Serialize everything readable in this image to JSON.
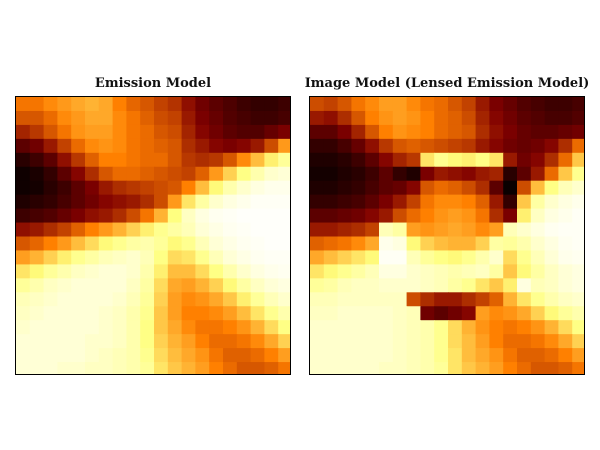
{
  "chart_data": [
    {
      "type": "heatmap",
      "title": "Emission Model",
      "colormap": "afmhot",
      "grid": false,
      "rows": 20,
      "cols": 20,
      "values": [
        [
          0.48,
          0.48,
          0.52,
          0.55,
          0.58,
          0.6,
          0.58,
          0.5,
          0.45,
          0.42,
          0.38,
          0.35,
          0.28,
          0.22,
          0.18,
          0.15,
          0.12,
          0.1,
          0.1,
          0.12
        ],
        [
          0.42,
          0.42,
          0.46,
          0.52,
          0.55,
          0.58,
          0.58,
          0.52,
          0.48,
          0.44,
          0.4,
          0.38,
          0.3,
          0.24,
          0.2,
          0.16,
          0.14,
          0.12,
          0.12,
          0.14
        ],
        [
          0.32,
          0.36,
          0.42,
          0.48,
          0.54,
          0.56,
          0.56,
          0.52,
          0.48,
          0.46,
          0.42,
          0.4,
          0.32,
          0.26,
          0.22,
          0.18,
          0.16,
          0.16,
          0.2,
          0.24
        ],
        [
          0.18,
          0.22,
          0.3,
          0.38,
          0.46,
          0.52,
          0.54,
          0.52,
          0.48,
          0.46,
          0.44,
          0.42,
          0.34,
          0.3,
          0.26,
          0.24,
          0.26,
          0.3,
          0.4,
          0.55
        ],
        [
          0.08,
          0.12,
          0.18,
          0.28,
          0.36,
          0.44,
          0.5,
          0.5,
          0.48,
          0.46,
          0.46,
          0.42,
          0.36,
          0.34,
          0.36,
          0.42,
          0.52,
          0.62,
          0.72,
          0.8
        ],
        [
          0.03,
          0.05,
          0.1,
          0.18,
          0.26,
          0.34,
          0.42,
          0.46,
          0.46,
          0.44,
          0.42,
          0.4,
          0.38,
          0.44,
          0.55,
          0.66,
          0.76,
          0.84,
          0.9,
          0.92
        ],
        [
          0.03,
          0.04,
          0.08,
          0.12,
          0.18,
          0.24,
          0.3,
          0.34,
          0.36,
          0.38,
          0.4,
          0.42,
          0.5,
          0.62,
          0.74,
          0.84,
          0.9,
          0.94,
          0.96,
          0.96
        ],
        [
          0.06,
          0.08,
          0.1,
          0.14,
          0.18,
          0.22,
          0.26,
          0.28,
          0.3,
          0.34,
          0.4,
          0.55,
          0.7,
          0.82,
          0.9,
          0.94,
          0.96,
          0.98,
          0.98,
          0.98
        ],
        [
          0.12,
          0.14,
          0.16,
          0.2,
          0.24,
          0.28,
          0.3,
          0.34,
          0.4,
          0.48,
          0.6,
          0.75,
          0.88,
          0.94,
          0.97,
          0.98,
          0.99,
          0.99,
          0.99,
          0.99
        ],
        [
          0.28,
          0.3,
          0.34,
          0.38,
          0.44,
          0.5,
          0.55,
          0.6,
          0.66,
          0.72,
          0.78,
          0.82,
          0.86,
          0.92,
          0.95,
          0.97,
          0.98,
          0.99,
          0.99,
          0.99
        ],
        [
          0.42,
          0.45,
          0.5,
          0.55,
          0.62,
          0.68,
          0.74,
          0.78,
          0.82,
          0.84,
          0.8,
          0.74,
          0.78,
          0.86,
          0.92,
          0.95,
          0.97,
          0.98,
          0.99,
          0.99
        ],
        [
          0.56,
          0.6,
          0.66,
          0.72,
          0.78,
          0.82,
          0.86,
          0.88,
          0.9,
          0.86,
          0.76,
          0.68,
          0.7,
          0.78,
          0.86,
          0.92,
          0.95,
          0.97,
          0.98,
          0.98
        ],
        [
          0.7,
          0.74,
          0.8,
          0.84,
          0.88,
          0.9,
          0.92,
          0.92,
          0.9,
          0.84,
          0.72,
          0.62,
          0.62,
          0.68,
          0.76,
          0.84,
          0.9,
          0.94,
          0.96,
          0.97
        ],
        [
          0.8,
          0.84,
          0.88,
          0.9,
          0.92,
          0.92,
          0.92,
          0.92,
          0.88,
          0.82,
          0.68,
          0.58,
          0.56,
          0.6,
          0.66,
          0.74,
          0.82,
          0.88,
          0.92,
          0.94
        ],
        [
          0.86,
          0.88,
          0.9,
          0.92,
          0.92,
          0.92,
          0.92,
          0.9,
          0.86,
          0.8,
          0.66,
          0.56,
          0.52,
          0.54,
          0.58,
          0.64,
          0.72,
          0.8,
          0.86,
          0.9
        ],
        [
          0.88,
          0.9,
          0.92,
          0.92,
          0.92,
          0.92,
          0.9,
          0.88,
          0.84,
          0.78,
          0.64,
          0.56,
          0.5,
          0.5,
          0.52,
          0.56,
          0.62,
          0.7,
          0.78,
          0.84
        ],
        [
          0.9,
          0.92,
          0.92,
          0.92,
          0.92,
          0.92,
          0.9,
          0.88,
          0.84,
          0.76,
          0.64,
          0.58,
          0.52,
          0.48,
          0.48,
          0.5,
          0.54,
          0.6,
          0.68,
          0.76
        ],
        [
          0.92,
          0.92,
          0.92,
          0.92,
          0.92,
          0.9,
          0.9,
          0.88,
          0.84,
          0.76,
          0.66,
          0.6,
          0.56,
          0.5,
          0.46,
          0.46,
          0.48,
          0.52,
          0.58,
          0.66
        ],
        [
          0.92,
          0.92,
          0.92,
          0.92,
          0.92,
          0.9,
          0.88,
          0.86,
          0.84,
          0.78,
          0.68,
          0.62,
          0.58,
          0.54,
          0.48,
          0.44,
          0.44,
          0.46,
          0.5,
          0.56
        ],
        [
          0.92,
          0.92,
          0.92,
          0.9,
          0.9,
          0.88,
          0.88,
          0.86,
          0.84,
          0.8,
          0.7,
          0.64,
          0.6,
          0.56,
          0.5,
          0.46,
          0.42,
          0.42,
          0.44,
          0.48
        ]
      ]
    },
    {
      "type": "heatmap",
      "title": "Image Model (Lensed Emission Model)",
      "colormap": "afmhot",
      "grid": false,
      "rows": 20,
      "cols": 20,
      "values": [
        [
          0.4,
          0.38,
          0.42,
          0.48,
          0.52,
          0.56,
          0.56,
          0.52,
          0.48,
          0.46,
          0.42,
          0.38,
          0.3,
          0.24,
          0.2,
          0.16,
          0.14,
          0.12,
          0.12,
          0.14
        ],
        [
          0.3,
          0.28,
          0.34,
          0.42,
          0.5,
          0.54,
          0.56,
          0.54,
          0.5,
          0.46,
          0.44,
          0.4,
          0.32,
          0.26,
          0.22,
          0.18,
          0.16,
          0.14,
          0.14,
          0.16
        ],
        [
          0.18,
          0.18,
          0.24,
          0.32,
          0.42,
          0.5,
          0.54,
          0.52,
          0.5,
          0.46,
          0.44,
          0.42,
          0.34,
          0.28,
          0.24,
          0.2,
          0.18,
          0.18,
          0.2,
          0.22
        ],
        [
          0.1,
          0.1,
          0.14,
          0.2,
          0.28,
          0.36,
          0.42,
          0.44,
          0.42,
          0.4,
          0.38,
          0.36,
          0.3,
          0.26,
          0.22,
          0.2,
          0.22,
          0.26,
          0.34,
          0.46
        ],
        [
          0.06,
          0.06,
          0.08,
          0.12,
          0.18,
          0.26,
          0.32,
          0.36,
          0.7,
          0.78,
          0.74,
          0.72,
          0.76,
          0.7,
          0.3,
          0.22,
          0.26,
          0.34,
          0.46,
          0.64
        ],
        [
          0.04,
          0.04,
          0.06,
          0.08,
          0.12,
          0.18,
          0.1,
          0.06,
          0.24,
          0.3,
          0.28,
          0.26,
          0.3,
          0.32,
          0.08,
          0.18,
          0.3,
          0.46,
          0.64,
          0.78
        ],
        [
          0.06,
          0.06,
          0.08,
          0.1,
          0.14,
          0.18,
          0.2,
          0.26,
          0.42,
          0.46,
          0.44,
          0.4,
          0.34,
          0.18,
          0.02,
          0.4,
          0.62,
          0.76,
          0.86,
          0.9
        ],
        [
          0.1,
          0.1,
          0.12,
          0.14,
          0.18,
          0.24,
          0.3,
          0.38,
          0.48,
          0.52,
          0.52,
          0.5,
          0.44,
          0.3,
          0.1,
          0.64,
          0.82,
          0.9,
          0.94,
          0.96
        ],
        [
          0.18,
          0.18,
          0.2,
          0.22,
          0.26,
          0.3,
          0.4,
          0.46,
          0.5,
          0.54,
          0.56,
          0.54,
          0.48,
          0.34,
          0.24,
          0.72,
          0.88,
          0.94,
          0.96,
          0.98
        ],
        [
          0.3,
          0.3,
          0.32,
          0.34,
          0.38,
          0.86,
          0.82,
          0.56,
          0.54,
          0.56,
          0.58,
          0.56,
          0.52,
          0.56,
          0.86,
          0.9,
          0.94,
          0.97,
          0.98,
          0.98
        ],
        [
          0.44,
          0.46,
          0.48,
          0.52,
          0.58,
          0.96,
          0.94,
          0.74,
          0.66,
          0.62,
          0.6,
          0.6,
          0.66,
          0.82,
          0.8,
          0.84,
          0.9,
          0.94,
          0.97,
          0.98
        ],
        [
          0.58,
          0.62,
          0.66,
          0.7,
          0.74,
          0.98,
          0.98,
          0.86,
          0.8,
          0.76,
          0.74,
          0.78,
          0.84,
          0.9,
          0.68,
          0.78,
          0.86,
          0.92,
          0.96,
          0.97
        ],
        [
          0.7,
          0.74,
          0.78,
          0.82,
          0.86,
          0.94,
          0.94,
          0.9,
          0.88,
          0.86,
          0.84,
          0.86,
          0.88,
          0.82,
          0.64,
          0.74,
          0.82,
          0.88,
          0.92,
          0.94
        ],
        [
          0.8,
          0.82,
          0.86,
          0.88,
          0.88,
          0.9,
          0.9,
          0.9,
          0.88,
          0.86,
          0.82,
          0.78,
          0.7,
          0.64,
          0.72,
          0.94,
          0.86,
          0.88,
          0.92,
          0.94
        ],
        [
          0.86,
          0.86,
          0.88,
          0.88,
          0.88,
          0.88,
          0.88,
          0.4,
          0.34,
          0.3,
          0.3,
          0.34,
          0.38,
          0.44,
          0.6,
          0.7,
          0.78,
          0.84,
          0.88,
          0.9
        ],
        [
          0.88,
          0.88,
          0.9,
          0.9,
          0.9,
          0.9,
          0.88,
          0.86,
          0.22,
          0.18,
          0.22,
          0.26,
          0.56,
          0.52,
          0.54,
          0.58,
          0.66,
          0.74,
          0.8,
          0.84
        ],
        [
          0.9,
          0.9,
          0.9,
          0.9,
          0.9,
          0.9,
          0.88,
          0.86,
          0.84,
          0.78,
          0.68,
          0.6,
          0.54,
          0.5,
          0.48,
          0.5,
          0.54,
          0.6,
          0.68,
          0.76
        ],
        [
          0.9,
          0.9,
          0.9,
          0.9,
          0.9,
          0.9,
          0.88,
          0.86,
          0.84,
          0.78,
          0.68,
          0.62,
          0.56,
          0.5,
          0.46,
          0.46,
          0.48,
          0.52,
          0.58,
          0.66
        ],
        [
          0.9,
          0.9,
          0.9,
          0.9,
          0.9,
          0.9,
          0.88,
          0.86,
          0.84,
          0.78,
          0.7,
          0.62,
          0.58,
          0.54,
          0.48,
          0.44,
          0.44,
          0.46,
          0.5,
          0.56
        ],
        [
          0.9,
          0.9,
          0.9,
          0.9,
          0.9,
          0.88,
          0.88,
          0.86,
          0.84,
          0.8,
          0.7,
          0.64,
          0.6,
          0.56,
          0.5,
          0.46,
          0.42,
          0.42,
          0.44,
          0.48
        ]
      ]
    }
  ]
}
